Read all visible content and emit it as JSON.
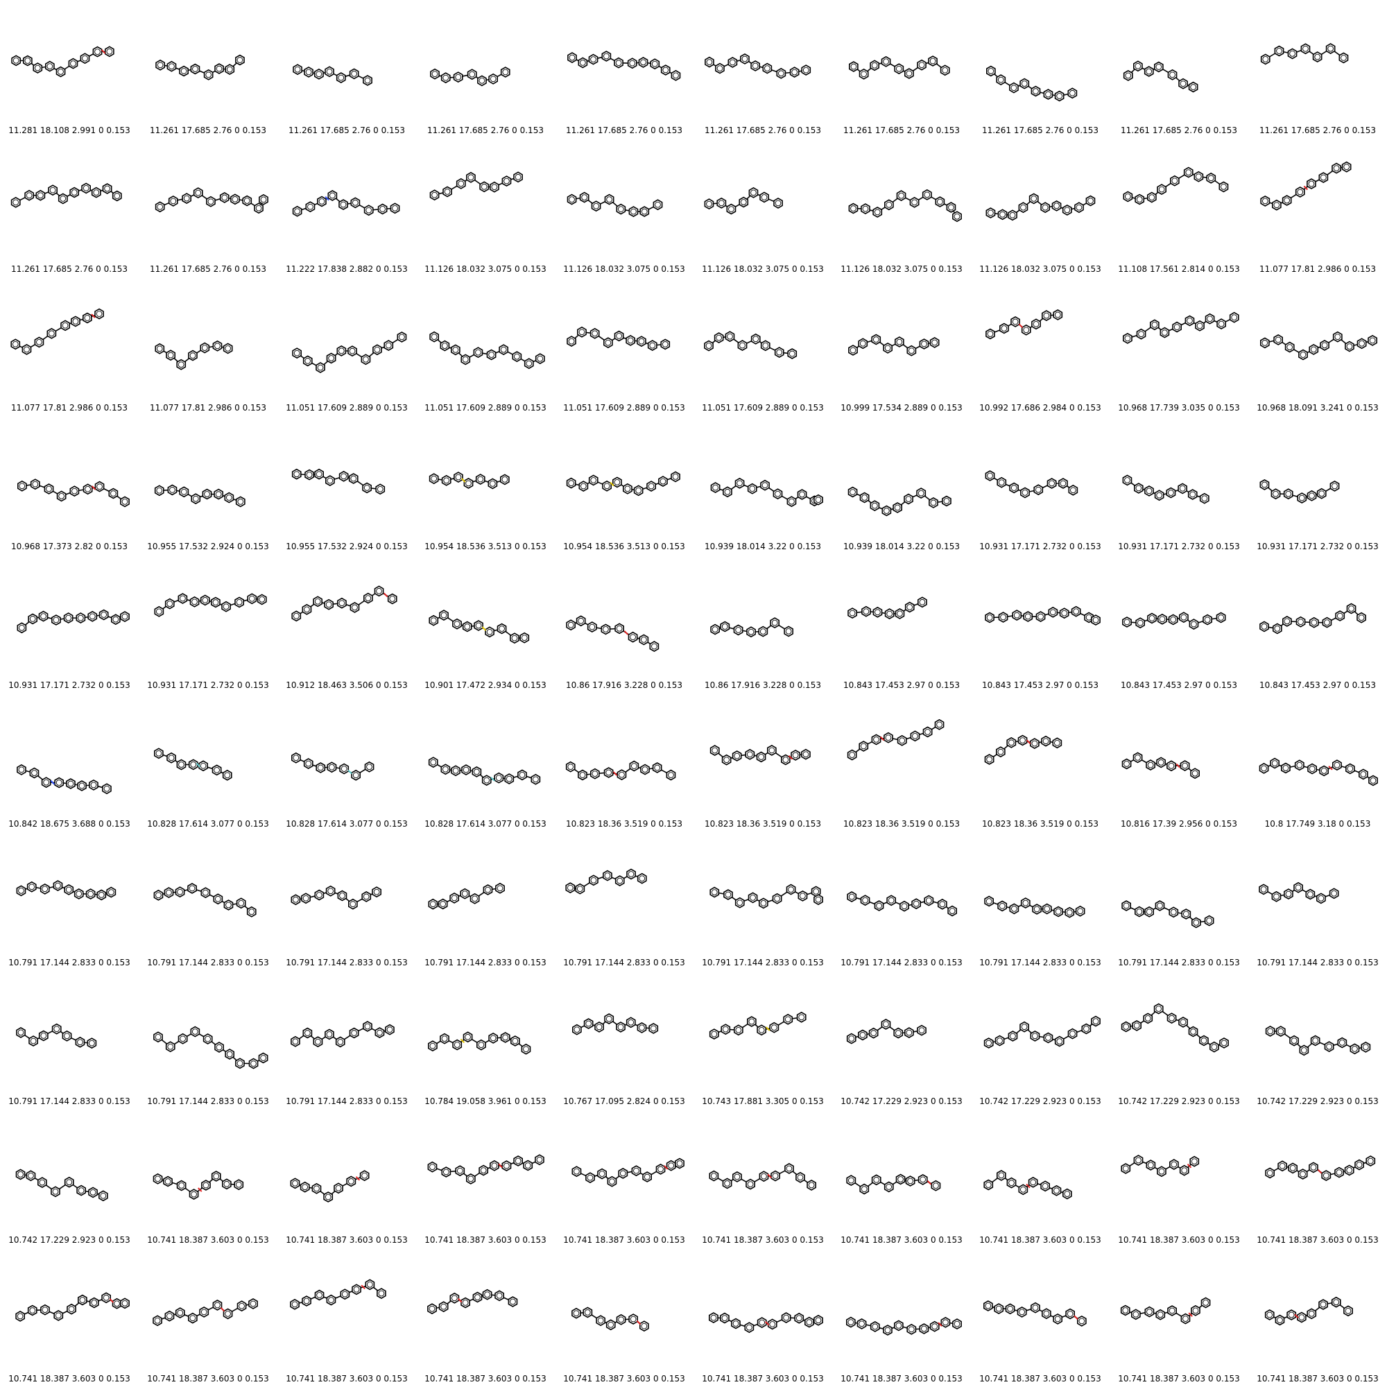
{
  "grid": {
    "columns": 10,
    "rows": 10,
    "colors": {
      "bond": "#000000",
      "oxygen": "#e02020",
      "nitrogen": "#3050f8",
      "sulfur": "#e6c800",
      "fluorine": "#60d0d0"
    },
    "cells": [
      {
        "caption": "11.281 18.108 2.991 0 0.153",
        "heteroatom": "oxygen"
      },
      {
        "caption": "11.261 17.685 2.76 0 0.153"
      },
      {
        "caption": "11.261 17.685 2.76 0 0.153"
      },
      {
        "caption": "11.261 17.685 2.76 0 0.153"
      },
      {
        "caption": "11.261 17.685 2.76 0 0.153"
      },
      {
        "caption": "11.261 17.685 2.76 0 0.153"
      },
      {
        "caption": "11.261 17.685 2.76 0 0.153"
      },
      {
        "caption": "11.261 17.685 2.76 0 0.153"
      },
      {
        "caption": "11.261 17.685 2.76 0 0.153"
      },
      {
        "caption": "11.261 17.685 2.76 0 0.153"
      },
      {
        "caption": "11.261 17.685 2.76 0 0.153"
      },
      {
        "caption": "11.261 17.685 2.76 0 0.153"
      },
      {
        "caption": "11.222 17.838 2.882 0 0.153",
        "heteroatom": "nitrogen"
      },
      {
        "caption": "11.126 18.032 3.075 0 0.153"
      },
      {
        "caption": "11.126 18.032 3.075 0 0.153"
      },
      {
        "caption": "11.126 18.032 3.075 0 0.153"
      },
      {
        "caption": "11.126 18.032 3.075 0 0.153"
      },
      {
        "caption": "11.126 18.032 3.075 0 0.153"
      },
      {
        "caption": "11.108 17.561 2.814 0 0.153"
      },
      {
        "caption": "11.077 17.81 2.986 0 0.153",
        "heteroatom": "oxygen"
      },
      {
        "caption": "11.077 17.81 2.986 0 0.153",
        "heteroatom": "oxygen"
      },
      {
        "caption": "11.077 17.81 2.986 0 0.153"
      },
      {
        "caption": "11.051 17.609 2.889 0 0.153"
      },
      {
        "caption": "11.051 17.609 2.889 0 0.153"
      },
      {
        "caption": "11.051 17.609 2.889 0 0.153"
      },
      {
        "caption": "11.051 17.609 2.889 0 0.153"
      },
      {
        "caption": "10.999 17.534 2.889 0 0.153"
      },
      {
        "caption": "10.992 17.686 2.984 0 0.153",
        "heteroatom": "oxygen"
      },
      {
        "caption": "10.968 17.739 3.035 0 0.153"
      },
      {
        "caption": "10.968 18.091 3.241 0 0.153"
      },
      {
        "caption": "10.968 17.373 2.82 0 0.153",
        "heteroatom": "oxygen"
      },
      {
        "caption": "10.955 17.532 2.924 0 0.153"
      },
      {
        "caption": "10.955 17.532 2.924 0 0.153"
      },
      {
        "caption": "10.954 18.536 3.513 0 0.153",
        "heteroatom": "sulfur"
      },
      {
        "caption": "10.954 18.536 3.513 0 0.153",
        "heteroatom": "sulfur"
      },
      {
        "caption": "10.939 18.014 3.22 0 0.153"
      },
      {
        "caption": "10.939 18.014 3.22 0 0.153"
      },
      {
        "caption": "10.931 17.171 2.732 0 0.153"
      },
      {
        "caption": "10.931 17.171 2.732 0 0.153"
      },
      {
        "caption": "10.931 17.171 2.732 0 0.153"
      },
      {
        "caption": "10.931 17.171 2.732 0 0.153"
      },
      {
        "caption": "10.931 17.171 2.732 0 0.153"
      },
      {
        "caption": "10.912 18.463 3.506 0 0.153",
        "heteroatom": "oxygen"
      },
      {
        "caption": "10.901 17.472 2.934 0 0.153",
        "heteroatom": "sulfur"
      },
      {
        "caption": "10.86 17.916 3.228 0 0.153",
        "heteroatom": "oxygen"
      },
      {
        "caption": "10.86 17.916 3.228 0 0.153"
      },
      {
        "caption": "10.843 17.453 2.97 0 0.153"
      },
      {
        "caption": "10.843 17.453 2.97 0 0.153"
      },
      {
        "caption": "10.843 17.453 2.97 0 0.153"
      },
      {
        "caption": "10.843 17.453 2.97 0 0.153"
      },
      {
        "caption": "10.842 18.675 3.688 0 0.153",
        "heteroatom": "nitrogen"
      },
      {
        "caption": "10.828 17.614 3.077 0 0.153",
        "heteroatom": "fluorine"
      },
      {
        "caption": "10.828 17.614 3.077 0 0.153",
        "heteroatom": "fluorine"
      },
      {
        "caption": "10.828 17.614 3.077 0 0.153",
        "heteroatom": "fluorine"
      },
      {
        "caption": "10.823 18.36 3.519 0 0.153",
        "heteroatom": "oxygen"
      },
      {
        "caption": "10.823 18.36 3.519 0 0.153",
        "heteroatom": "oxygen"
      },
      {
        "caption": "10.823 18.36 3.519 0 0.153",
        "heteroatom": "oxygen"
      },
      {
        "caption": "10.823 18.36 3.519 0 0.153",
        "heteroatom": "oxygen"
      },
      {
        "caption": "10.816 17.39 2.956 0 0.153",
        "heteroatom": "oxygen"
      },
      {
        "caption": "10.8 17.749 3.18 0 0.153",
        "heteroatom": "oxygen"
      },
      {
        "caption": "10.791 17.144 2.833 0 0.153"
      },
      {
        "caption": "10.791 17.144 2.833 0 0.153"
      },
      {
        "caption": "10.791 17.144 2.833 0 0.153"
      },
      {
        "caption": "10.791 17.144 2.833 0 0.153"
      },
      {
        "caption": "10.791 17.144 2.833 0 0.153"
      },
      {
        "caption": "10.791 17.144 2.833 0 0.153"
      },
      {
        "caption": "10.791 17.144 2.833 0 0.153"
      },
      {
        "caption": "10.791 17.144 2.833 0 0.153"
      },
      {
        "caption": "10.791 17.144 2.833 0 0.153"
      },
      {
        "caption": "10.791 17.144 2.833 0 0.153"
      },
      {
        "caption": "10.791 17.144 2.833 0 0.153"
      },
      {
        "caption": "10.791 17.144 2.833 0 0.153"
      },
      {
        "caption": "10.791 17.144 2.833 0 0.153"
      },
      {
        "caption": "10.784 19.058 3.961 0 0.153",
        "heteroatom": "sulfur"
      },
      {
        "caption": "10.767 17.095 2.824 0 0.153"
      },
      {
        "caption": "10.743 17.881 3.305 0 0.153",
        "heteroatom": "sulfur"
      },
      {
        "caption": "10.742 17.229 2.923 0 0.153"
      },
      {
        "caption": "10.742 17.229 2.923 0 0.153"
      },
      {
        "caption": "10.742 17.229 2.923 0 0.153"
      },
      {
        "caption": "10.742 17.229 2.923 0 0.153"
      },
      {
        "caption": "10.742 17.229 2.923 0 0.153"
      },
      {
        "caption": "10.741 18.387 3.603 0 0.153",
        "heteroatom": "oxygen"
      },
      {
        "caption": "10.741 18.387 3.603 0 0.153",
        "heteroatom": "oxygen"
      },
      {
        "caption": "10.741 18.387 3.603 0 0.153",
        "heteroatom": "oxygen"
      },
      {
        "caption": "10.741 18.387 3.603 0 0.153",
        "heteroatom": "oxygen"
      },
      {
        "caption": "10.741 18.387 3.603 0 0.153",
        "heteroatom": "oxygen"
      },
      {
        "caption": "10.741 18.387 3.603 0 0.153",
        "heteroatom": "oxygen"
      },
      {
        "caption": "10.741 18.387 3.603 0 0.153",
        "heteroatom": "oxygen"
      },
      {
        "caption": "10.741 18.387 3.603 0 0.153",
        "heteroatom": "oxygen"
      },
      {
        "caption": "10.741 18.387 3.603 0 0.153",
        "heteroatom": "oxygen"
      },
      {
        "caption": "10.741 18.387 3.603 0 0.153",
        "heteroatom": "oxygen"
      },
      {
        "caption": "10.741 18.387 3.603 0 0.153",
        "heteroatom": "oxygen"
      },
      {
        "caption": "10.741 18.387 3.603 0 0.153",
        "heteroatom": "oxygen"
      },
      {
        "caption": "10.741 18.387 3.603 0 0.153",
        "heteroatom": "oxygen"
      },
      {
        "caption": "10.741 18.387 3.603 0 0.153",
        "heteroatom": "oxygen"
      },
      {
        "caption": "10.741 18.387 3.603 0 0.153",
        "heteroatom": "oxygen"
      },
      {
        "caption": "10.741 18.387 3.603 0 0.153",
        "heteroatom": "oxygen"
      },
      {
        "caption": "10.741 18.387 3.603 0 0.153",
        "heteroatom": "oxygen"
      },
      {
        "caption": "10.741 18.387 3.603 0 0.153",
        "heteroatom": "oxygen"
      },
      {
        "caption": "10.741 18.387 3.603 0 0.153",
        "heteroatom": "oxygen"
      }
    ]
  }
}
